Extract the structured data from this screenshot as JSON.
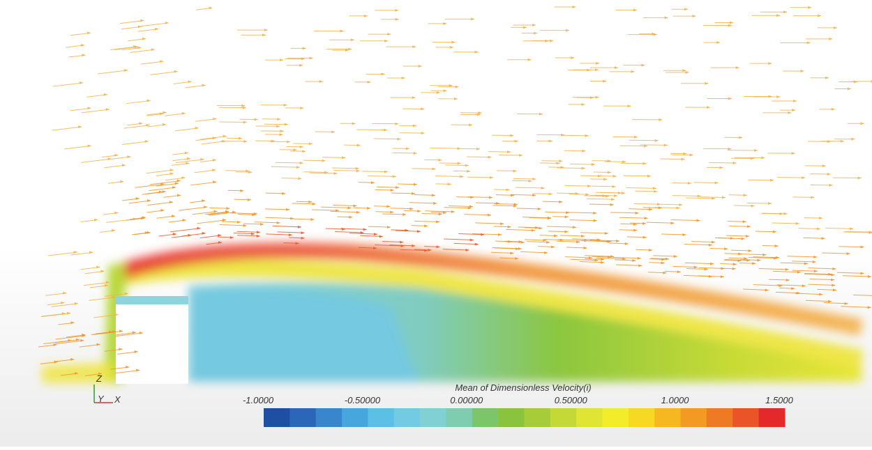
{
  "colorbar": {
    "title": "Mean of Dimensionless Velocity(i)",
    "range": [
      -1,
      1.5
    ],
    "ticks": [
      {
        "value": -1,
        "label": "-1.0000"
      },
      {
        "value": -0.5,
        "label": "-0.50000"
      },
      {
        "value": 0,
        "label": "0.00000"
      },
      {
        "value": 0.5,
        "label": "0.50000"
      },
      {
        "value": 1,
        "label": "1.0000"
      },
      {
        "value": 1.5,
        "label": "1.5000"
      }
    ],
    "colors": [
      "#1d4fa3",
      "#2b67b8",
      "#3a86cc",
      "#47a6dc",
      "#5cc0e6",
      "#72cbe2",
      "#80d0d4",
      "#7fcdb0",
      "#7cc66a",
      "#8ac43f",
      "#a6cc3a",
      "#c4d936",
      "#e0e533",
      "#f3ec2a",
      "#f7d823",
      "#f5b820",
      "#f29a22",
      "#ee7a25",
      "#ea5428",
      "#e5292b"
    ]
  },
  "axes": {
    "y": "Y",
    "x": "X",
    "z": "Z"
  }
}
